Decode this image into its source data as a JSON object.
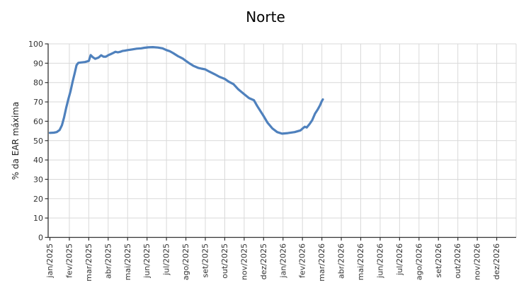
{
  "chart_data": {
    "type": "line",
    "title": "Norte",
    "xlabel": "",
    "ylabel": "% da EAR máxima",
    "ylim": [
      0,
      100
    ],
    "y_ticks": [
      0,
      10,
      20,
      30,
      40,
      50,
      60,
      70,
      80,
      90,
      100
    ],
    "x_tick_labels": [
      "jan/2025",
      "fev/2025",
      "mar/2025",
      "abr/2025",
      "mai/2025",
      "jun/2025",
      "jul/2025",
      "ago/2025",
      "set/2025",
      "out/2025",
      "nov/2025",
      "dez/2025",
      "jan/2026",
      "fev/2026",
      "mar/2026",
      "abr/2026",
      "mai/2026",
      "jun/2026",
      "jul/2026",
      "ago/2026",
      "set/2026",
      "out/2026",
      "nov/2026",
      "dez/2026"
    ],
    "grid": true,
    "legend_position": "none",
    "series": [
      {
        "name": "% da EAR máxima - Norte",
        "color": "#4f81bd",
        "x_months": [
          0,
          0.2,
          0.35,
          0.5,
          0.62,
          0.73,
          0.84,
          0.95,
          1.06,
          1.17,
          1.28,
          1.37,
          1.46,
          1.6,
          1.8,
          2.0,
          2.1,
          2.22,
          2.33,
          2.5,
          2.64,
          2.76,
          2.88,
          3.0,
          3.13,
          3.25,
          3.37,
          3.5,
          3.62,
          3.73,
          3.86,
          4.0,
          4.22,
          4.46,
          4.7,
          4.87,
          5.07,
          5.3,
          5.56,
          5.8,
          6.0,
          6.17,
          6.35,
          6.6,
          6.84,
          7.0,
          7.2,
          7.4,
          7.63,
          7.8,
          8.0,
          8.2,
          8.48,
          8.72,
          9.0,
          9.2,
          9.45,
          9.7,
          10.0,
          10.25,
          10.5,
          10.67,
          11.0,
          11.2,
          11.45,
          11.7,
          11.95,
          12.25,
          12.6,
          12.9,
          13.0,
          13.12,
          13.22,
          13.36,
          13.5,
          13.65,
          13.78,
          13.9,
          14.0,
          14.05
        ],
        "values": [
          54,
          54.1,
          54.4,
          55.5,
          58,
          62,
          67,
          71.5,
          75.5,
          80.5,
          85,
          89,
          90.2,
          90.4,
          90.6,
          91.2,
          94.2,
          93,
          92.3,
          92.9,
          94.1,
          93.4,
          93.4,
          94.1,
          94.7,
          95.3,
          95.9,
          95.6,
          95.9,
          96.3,
          96.5,
          96.8,
          97.1,
          97.5,
          97.7,
          98,
          98.2,
          98.3,
          98.1,
          97.7,
          96.8,
          96.2,
          95.2,
          93.6,
          92.4,
          91.2,
          89.8,
          88.6,
          87.6,
          87.2,
          86.8,
          85.7,
          84.3,
          83,
          81.9,
          80.5,
          79.2,
          76.5,
          74,
          72,
          70.9,
          67.9,
          62.7,
          59.3,
          56.3,
          54.4,
          53.6,
          53.9,
          54.4,
          55.3,
          56.2,
          57.2,
          56.8,
          58.5,
          60.5,
          64,
          66,
          68.2,
          70.5,
          71.3
        ]
      }
    ]
  },
  "colors": {
    "line": "#4f81bd",
    "grid": "#d9d9d9",
    "axis": "#333333",
    "tick_text": "#333333",
    "title_text": "#000000",
    "background": "#ffffff"
  }
}
